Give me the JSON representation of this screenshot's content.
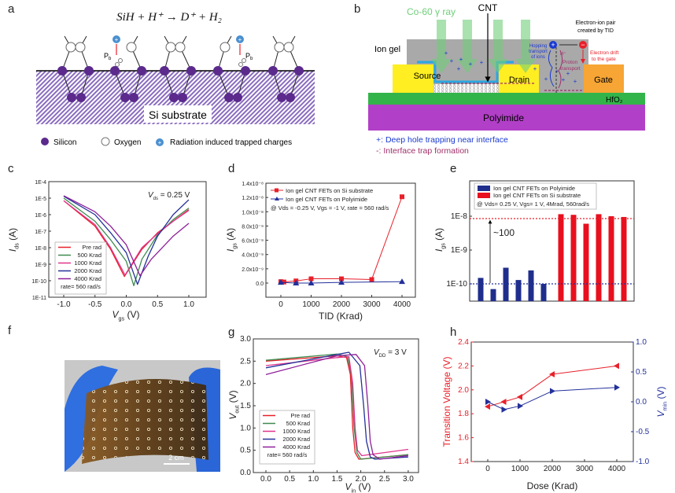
{
  "panel_labels": {
    "a": "a",
    "b": "b",
    "c": "c",
    "d": "d",
    "e": "e",
    "f": "f",
    "g": "g",
    "h": "h"
  },
  "panel_a": {
    "equation": "SiH + H⁺ → D⁺ + H₂",
    "pb_main": "P",
    "pb_sub": "b",
    "substrate_label": "Si substrate",
    "legend": {
      "silicon": "Silicon",
      "oxygen": "Oxygen",
      "charges": "Radiation induced trapped charges"
    },
    "colors": {
      "silicon": "#5b2a8c",
      "hatch": "#8a6cc0",
      "charge": "#4a90d0"
    }
  },
  "panel_b": {
    "gamma_label": "Co-60 γ ray",
    "cnt_label": "CNT",
    "ion_gel_label": "Ion gel",
    "source_label": "Source",
    "drain_label": "Drain",
    "gate_label": "Gate",
    "hfo2_label": "HfO₂",
    "polyimide_label": "Polyimide",
    "pair_label_1": "Electron-ion pair",
    "pair_label_2": "created by TID",
    "hopping_1": "Hopping",
    "hopping_2": "transport",
    "hopping_3": "of ions",
    "h_plus": "H⁺",
    "proton_1": "Proton",
    "proton_2": "transport",
    "drift_1": "Electron drift",
    "drift_2": "to the gate",
    "legend_plus": "+: Deep hole trapping near interface",
    "legend_minus": "-: Interface trap formation",
    "colors": {
      "source": "#ffee22",
      "gate": "#f7a535",
      "hfo2": "#33b44a",
      "polyimide": "#b23fc8",
      "ion_gel": "#a9a9a9",
      "gamma": "#6fcf7a"
    }
  },
  "panel_f": {
    "scale_bar": "2 cm"
  },
  "chart_data": [
    {
      "id": "c",
      "type": "line",
      "xlabel": {
        "main": "V",
        "sub": "gs",
        "unit": " (V)"
      },
      "ylabel": {
        "main": "I",
        "sub": "ds",
        "unit": " (A)"
      },
      "yscale": "log",
      "xlim": [
        -1.25,
        1.25
      ],
      "ylim": [
        1e-11,
        0.0001
      ],
      "xticks": [
        -1.0,
        -0.5,
        0.0,
        0.5,
        1.0
      ],
      "xtick_labels": [
        "-1.0",
        "-0.5",
        "0.0",
        "0.5",
        "1.0"
      ],
      "yticks": [
        0.0001,
        1e-05,
        1e-06,
        1e-07,
        1e-08,
        1e-09,
        1e-10,
        1e-11
      ],
      "ytick_labels": [
        "1E-4",
        "1E-5",
        "1E-6",
        "1E-7",
        "1E-8",
        "1E-9",
        "1E-10",
        "1E-11"
      ],
      "annotation": {
        "main": "V",
        "sub": "ds",
        "rest": " = 0.25 V"
      },
      "legend_note": "rate= 560 rad/s",
      "legend_position": "bottom-left",
      "series": [
        {
          "name": "Pre rad",
          "color": "#e8202a",
          "x": [
            -1,
            -0.5,
            -0.25,
            -0.03,
            0.25,
            0.5,
            0.75,
            1
          ],
          "y": [
            7e-06,
            2e-07,
            8e-09,
            1.8e-10,
            8e-09,
            8e-08,
            4e-07,
            2e-06
          ]
        },
        {
          "name": "500 Krad",
          "color": "#3f8a4f",
          "x": [
            -1,
            -0.5,
            -0.25,
            0,
            0.12,
            0.25,
            0.5,
            0.75,
            1
          ],
          "y": [
            1e-05,
            4e-07,
            3e-08,
            1.5e-09,
            5e-11,
            2e-09,
            6e-08,
            5e-07,
            2.5e-06
          ]
        },
        {
          "name": "1000 Krad",
          "color": "#e0338c",
          "x": [
            -1,
            -0.5,
            -0.25,
            -0.02,
            0.25,
            0.5,
            0.75,
            1
          ],
          "y": [
            7e-06,
            2.5e-07,
            1e-08,
            2.2e-10,
            1e-08,
            7e-08,
            4e-07,
            1.8e-06
          ]
        },
        {
          "name": "2000 Krad",
          "color": "#23319a",
          "x": [
            -1,
            -0.5,
            -0.25,
            0,
            0.18,
            0.35,
            0.5,
            0.75,
            1
          ],
          "y": [
            1.3e-05,
            1e-06,
            8e-08,
            5e-09,
            6e-11,
            3e-09,
            5e-08,
            1e-06,
            8e-06
          ]
        },
        {
          "name": "4000 Krad",
          "color": "#8e1f9a",
          "x": [
            -1,
            -0.5,
            -0.25,
            0,
            0.22,
            0.4,
            0.5,
            0.75,
            1
          ],
          "y": [
            1.4e-05,
            1.5e-06,
            2e-07,
            1.5e-08,
            2e-10,
            2e-09,
            5e-09,
            5e-08,
            3e-07
          ]
        }
      ]
    },
    {
      "id": "d",
      "type": "line",
      "xlabel": {
        "main": "TID (Krad)"
      },
      "ylabel": {
        "main": "I",
        "sub": "gs",
        "unit": " (A)"
      },
      "xlim": [
        -500,
        4500
      ],
      "ylim": [
        -2e-09,
        1.4e-08
      ],
      "xticks": [
        0,
        1000,
        2000,
        3000,
        4000
      ],
      "xtick_labels": [
        "0",
        "1000",
        "2000",
        "3000",
        "4000"
      ],
      "yticks": [
        0,
        2e-09,
        4e-09,
        6e-09,
        8e-09,
        1e-08,
        1.2e-08,
        1.4e-08
      ],
      "ytick_labels": [
        "0.0",
        "2.0x10⁻⁹",
        "4.0x10⁻⁹",
        "6.0x10⁻⁹",
        "8.0x10⁻⁹",
        "1.0x10⁻⁸",
        "1.2x10⁻⁸",
        "1.4x10⁻⁸"
      ],
      "annotation": "@ Vds = -0.25 V, Vgs = -1 V,  rate = 560 rad/s",
      "legend_position": "top-left",
      "series": [
        {
          "name": "Ion gel CNT FETs on Si substrate",
          "color": "#e8202a",
          "marker": "square",
          "x": [
            0,
            100,
            500,
            1000,
            2000,
            3000,
            4000
          ],
          "y": [
            2e-10,
            1.5e-10,
            3e-10,
            6e-10,
            6e-10,
            5e-10,
            1.21e-08
          ]
        },
        {
          "name": "Ion gel CNT FETs on Polyimide",
          "color": "#23319a",
          "marker": "triangle",
          "x": [
            0,
            500,
            1000,
            2000,
            4000
          ],
          "y": [
            1e-10,
            0,
            0,
            1e-10,
            2e-10
          ]
        }
      ]
    },
    {
      "id": "e",
      "type": "bar",
      "ylabel": {
        "main": "I",
        "sub": "gs",
        "unit": " (A)"
      },
      "yscale": "log",
      "ylim": [
        3e-11,
        1.1e-07
      ],
      "yticks": [
        1e-08,
        1e-09,
        1e-10
      ],
      "ytick_labels": [
        "1E-8",
        "1E-9",
        "1E-10"
      ],
      "annotation": "@ Vds= 0.25 V, Vgs= 1 V, 4Mrad, 560rad/s",
      "arrow_label": "~100",
      "reference_lines": [
        {
          "value": 8.5e-09,
          "color": "#e8202a"
        },
        {
          "value": 1e-10,
          "color": "#23319a"
        }
      ],
      "legend_position": "top",
      "series": [
        {
          "name": "Ion gel CNT FETs on Polyimide",
          "color": "#1f2e8c",
          "values": [
            1.5e-10,
            7e-11,
            3e-10,
            1.3e-10,
            2.5e-10,
            1e-10
          ]
        },
        {
          "name": "Ion gel CNT FETs on Si substrate",
          "color": "#e8101e",
          "values": [
            1.15e-08,
            1.1e-08,
            6e-09,
            1.15e-08,
            1e-08,
            9.5e-09
          ]
        }
      ]
    },
    {
      "id": "g",
      "type": "line",
      "xlabel": {
        "main": "V",
        "sub": "in",
        "unit": " (V)"
      },
      "ylabel": {
        "main": "V",
        "sub": "out",
        "unit": " (V)"
      },
      "xlim": [
        -0.27,
        3.2
      ],
      "ylim": [
        0,
        3.0
      ],
      "xticks": [
        0,
        0.5,
        1,
        1.5,
        2,
        2.5,
        3
      ],
      "xtick_labels": [
        "0.0",
        "0.5",
        "1.0",
        "1.5",
        "2.0",
        "2.5",
        "3.0"
      ],
      "yticks": [
        0,
        0.5,
        1,
        1.5,
        2,
        2.5,
        3
      ],
      "ytick_labels": [
        "0.0",
        "0.5",
        "1.0",
        "1.5",
        "2.0",
        "2.5",
        "3.0"
      ],
      "annotation": {
        "main": "V",
        "sub": "DD",
        "rest": " = 3 V"
      },
      "legend_note": "rate= 560 rad/s",
      "legend_position": "bottom-left",
      "series": [
        {
          "name": "Pre rad",
          "color": "#e8202a",
          "x": [
            0,
            1.5,
            1.7,
            1.78,
            1.83,
            1.88,
            1.96,
            3
          ],
          "y": [
            2.5,
            2.62,
            2.58,
            2.2,
            1.0,
            0.45,
            0.3,
            0.4
          ]
        },
        {
          "name": "500 Krad",
          "color": "#3f8a4f",
          "x": [
            0,
            1.5,
            1.72,
            1.8,
            1.86,
            1.92,
            2.0,
            3
          ],
          "y": [
            2.52,
            2.66,
            2.6,
            2.2,
            1.0,
            0.45,
            0.3,
            0.4
          ]
        },
        {
          "name": "1000 Krad",
          "color": "#e0338c",
          "x": [
            0,
            1.5,
            1.75,
            1.83,
            1.88,
            1.93,
            2.02,
            3
          ],
          "y": [
            2.4,
            2.58,
            2.6,
            2.0,
            1.0,
            0.5,
            0.38,
            0.52
          ]
        },
        {
          "name": "2000 Krad",
          "color": "#23319a",
          "x": [
            0,
            1.5,
            1.75,
            1.98,
            2.06,
            2.12,
            2.2,
            2.3,
            3
          ],
          "y": [
            2.35,
            2.65,
            2.7,
            2.4,
            1.5,
            0.7,
            0.35,
            0.3,
            0.35
          ]
        },
        {
          "name": "4000 Krad",
          "color": "#8e1f9a",
          "x": [
            0,
            1.5,
            1.9,
            2.08,
            2.15,
            2.2,
            2.26,
            2.4,
            3
          ],
          "y": [
            2.2,
            2.62,
            2.65,
            2.4,
            1.5,
            0.7,
            0.4,
            0.3,
            0.38
          ]
        }
      ]
    },
    {
      "id": "h",
      "type": "line",
      "xlabel": {
        "main": "Dose (Krad)"
      },
      "ylabel": {
        "main": "Transition Voltage (V)"
      },
      "ylabel_right": {
        "main": "V",
        "sub": "min",
        "unit": " (V)"
      },
      "xlim": [
        -500,
        4500
      ],
      "ylim": [
        1.4,
        2.4
      ],
      "ylim_right": [
        -1.0,
        1.0
      ],
      "xticks": [
        0,
        1000,
        2000,
        3000,
        4000
      ],
      "xtick_labels": [
        "0",
        "1000",
        "2000",
        "3000",
        "4000"
      ],
      "yticks": [
        1.4,
        1.6,
        1.8,
        2.0,
        2.2,
        2.4
      ],
      "ytick_labels": [
        "1.4",
        "1.6",
        "1.8",
        "2.0",
        "2.2",
        "2.4"
      ],
      "yticks_right": [
        -1.0,
        -0.5,
        0.0,
        0.5,
        1.0
      ],
      "ytick_labels_right": [
        "-1.0",
        "-0.5",
        "0.0",
        "0.5",
        "1.0"
      ],
      "series": [
        {
          "axis": "left",
          "color": "#e8202a",
          "marker": "triangle-left",
          "x": [
            0,
            500,
            1000,
            2000,
            4000
          ],
          "y": [
            1.86,
            1.9,
            1.94,
            2.13,
            2.2
          ]
        },
        {
          "axis": "right",
          "color": "#23319a",
          "marker": "triangle-right",
          "x": [
            0,
            500,
            1000,
            2000,
            4000
          ],
          "y": [
            0.0,
            -0.13,
            -0.07,
            0.18,
            0.24
          ]
        }
      ]
    }
  ]
}
